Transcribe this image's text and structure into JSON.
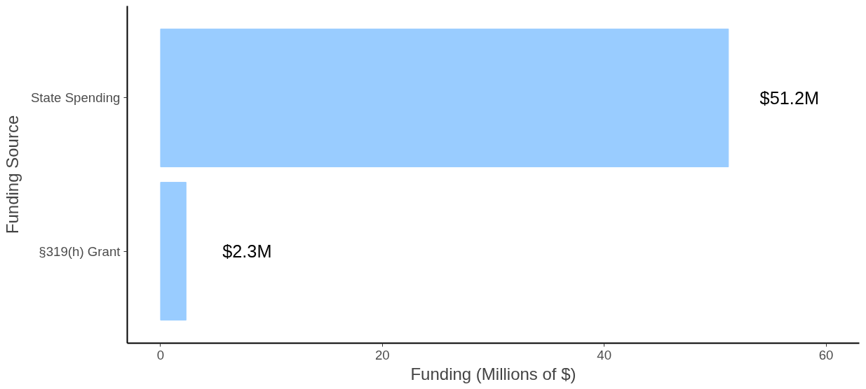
{
  "chart_data": {
    "type": "bar",
    "orientation": "horizontal",
    "categories": [
      "State Spending",
      "§319(h) Grant"
    ],
    "values": [
      51.2,
      2.3
    ],
    "color": "#99ccff",
    "value_labels": [
      "$51.2M",
      "$2.3M"
    ],
    "xlabel": "Funding (Millions of $)",
    "ylabel": "Funding Source",
    "xlim": [
      -3,
      63
    ],
    "xticks": [
      0,
      20,
      40,
      60
    ],
    "grid": false
  }
}
